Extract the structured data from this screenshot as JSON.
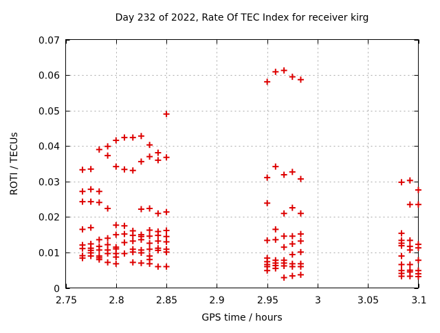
{
  "window": {
    "background": "#ffffff"
  },
  "chart_data": {
    "type": "scatter",
    "title": "Day 232 of 2022, Rate Of TEC Index for receiver kirg",
    "xlabel": "GPS time / hours",
    "ylabel": "ROTI / TECUs",
    "xlim": [
      2.75,
      3.1
    ],
    "ylim": [
      0,
      0.07
    ],
    "xticks": {
      "values": [
        2.75,
        2.8,
        2.85,
        2.9,
        2.95,
        3.0,
        3.05,
        3.1
      ],
      "labels": [
        "2.75",
        "2.8",
        "2.85",
        "2.9",
        "2.95",
        "3",
        "3.05",
        "3.1"
      ]
    },
    "yticks": {
      "values": [
        0,
        0.01,
        0.02,
        0.03,
        0.04,
        0.05,
        0.06,
        0.07
      ],
      "labels": [
        "0",
        "0.01",
        "0.02",
        "0.03",
        "0.04",
        "0.05",
        "0.06",
        "0.07"
      ]
    },
    "grid": true,
    "grid_style": "dashed",
    "grid_color": "#a8a8a8",
    "axis_color": "#000000",
    "legend_position": "none",
    "marker": {
      "shape": "plus",
      "color": "#dd0000",
      "size": 9,
      "stroke_width": 2
    },
    "series": [
      {
        "name": "ROTI",
        "points": [
          [
            2.7667,
            0.0333
          ],
          [
            2.7667,
            0.0272
          ],
          [
            2.7667,
            0.0243
          ],
          [
            2.7667,
            0.0165
          ],
          [
            2.7667,
            0.0121
          ],
          [
            2.7667,
            0.0111
          ],
          [
            2.7667,
            0.0091
          ],
          [
            2.7667,
            0.0084
          ],
          [
            2.775,
            0.0335
          ],
          [
            2.775,
            0.0278
          ],
          [
            2.775,
            0.0243
          ],
          [
            2.775,
            0.017
          ],
          [
            2.775,
            0.0124
          ],
          [
            2.775,
            0.0112
          ],
          [
            2.775,
            0.0106
          ],
          [
            2.775,
            0.0099
          ],
          [
            2.775,
            0.009
          ],
          [
            2.7833,
            0.039
          ],
          [
            2.7833,
            0.0272
          ],
          [
            2.7833,
            0.0241
          ],
          [
            2.7833,
            0.0136
          ],
          [
            2.7833,
            0.0117
          ],
          [
            2.7833,
            0.0107
          ],
          [
            2.7833,
            0.009
          ],
          [
            2.7833,
            0.0085
          ],
          [
            2.7833,
            0.008
          ],
          [
            2.7917,
            0.0399
          ],
          [
            2.7917,
            0.0373
          ],
          [
            2.7917,
            0.0224
          ],
          [
            2.7917,
            0.014
          ],
          [
            2.7917,
            0.0122
          ],
          [
            2.7917,
            0.0107
          ],
          [
            2.7917,
            0.0097
          ],
          [
            2.7917,
            0.0072
          ],
          [
            2.8,
            0.0416
          ],
          [
            2.8,
            0.0342
          ],
          [
            2.8,
            0.0177
          ],
          [
            2.8,
            0.015
          ],
          [
            2.8,
            0.0115
          ],
          [
            2.8,
            0.011
          ],
          [
            2.8,
            0.0097
          ],
          [
            2.8,
            0.0087
          ],
          [
            2.8,
            0.0068
          ],
          [
            2.8083,
            0.0424
          ],
          [
            2.8083,
            0.0334
          ],
          [
            2.8083,
            0.0175
          ],
          [
            2.8083,
            0.0152
          ],
          [
            2.8083,
            0.0128
          ],
          [
            2.8083,
            0.0097
          ],
          [
            2.8167,
            0.0424
          ],
          [
            2.8167,
            0.0331
          ],
          [
            2.8167,
            0.0161
          ],
          [
            2.8167,
            0.0148
          ],
          [
            2.8167,
            0.0132
          ],
          [
            2.8167,
            0.0109
          ],
          [
            2.8167,
            0.0101
          ],
          [
            2.8167,
            0.0072
          ],
          [
            2.825,
            0.0428
          ],
          [
            2.825,
            0.0356
          ],
          [
            2.825,
            0.0222
          ],
          [
            2.825,
            0.015
          ],
          [
            2.825,
            0.0145
          ],
          [
            2.825,
            0.0136
          ],
          [
            2.825,
            0.0107
          ],
          [
            2.825,
            0.0099
          ],
          [
            2.825,
            0.007
          ],
          [
            2.8333,
            0.0403
          ],
          [
            2.8333,
            0.037
          ],
          [
            2.8333,
            0.0224
          ],
          [
            2.8333,
            0.0163
          ],
          [
            2.8333,
            0.0146
          ],
          [
            2.8333,
            0.0126
          ],
          [
            2.8333,
            0.0109
          ],
          [
            2.8333,
            0.009
          ],
          [
            2.8333,
            0.008
          ],
          [
            2.8333,
            0.0068
          ],
          [
            2.8417,
            0.0381
          ],
          [
            2.8417,
            0.036
          ],
          [
            2.8417,
            0.021
          ],
          [
            2.8417,
            0.0159
          ],
          [
            2.8417,
            0.0148
          ],
          [
            2.8417,
            0.0132
          ],
          [
            2.8417,
            0.0112
          ],
          [
            2.8417,
            0.0106
          ],
          [
            2.8417,
            0.006
          ],
          [
            2.85,
            0.049
          ],
          [
            2.85,
            0.0368
          ],
          [
            2.85,
            0.0214
          ],
          [
            2.85,
            0.0162
          ],
          [
            2.85,
            0.0145
          ],
          [
            2.85,
            0.013
          ],
          [
            2.85,
            0.0109
          ],
          [
            2.85,
            0.0101
          ],
          [
            2.85,
            0.006
          ],
          [
            2.95,
            0.0581
          ],
          [
            2.95,
            0.0311
          ],
          [
            2.95,
            0.0239
          ],
          [
            2.95,
            0.0134
          ],
          [
            2.95,
            0.0084
          ],
          [
            2.95,
            0.0074
          ],
          [
            2.95,
            0.0066
          ],
          [
            2.95,
            0.006
          ],
          [
            2.95,
            0.0049
          ],
          [
            2.9583,
            0.0609
          ],
          [
            2.9583,
            0.0342
          ],
          [
            2.9583,
            0.0165
          ],
          [
            2.9583,
            0.0136
          ],
          [
            2.9583,
            0.0078
          ],
          [
            2.9583,
            0.007
          ],
          [
            2.9583,
            0.0063
          ],
          [
            2.9583,
            0.0055
          ],
          [
            2.9667,
            0.0613
          ],
          [
            2.9667,
            0.0319
          ],
          [
            2.9667,
            0.021
          ],
          [
            2.9667,
            0.0146
          ],
          [
            2.9667,
            0.0115
          ],
          [
            2.9667,
            0.0078
          ],
          [
            2.9667,
            0.007
          ],
          [
            2.9667,
            0.0062
          ],
          [
            2.9667,
            0.0029
          ],
          [
            2.975,
            0.0595
          ],
          [
            2.975,
            0.0327
          ],
          [
            2.975,
            0.0226
          ],
          [
            2.975,
            0.0146
          ],
          [
            2.975,
            0.0124
          ],
          [
            2.975,
            0.0094
          ],
          [
            2.975,
            0.0068
          ],
          [
            2.975,
            0.006
          ],
          [
            2.975,
            0.0034
          ],
          [
            2.9833,
            0.0587
          ],
          [
            2.9833,
            0.0307
          ],
          [
            2.9833,
            0.021
          ],
          [
            2.9833,
            0.0152
          ],
          [
            2.9833,
            0.0132
          ],
          [
            2.9833,
            0.0101
          ],
          [
            2.9833,
            0.0068
          ],
          [
            2.9833,
            0.006
          ],
          [
            2.9833,
            0.0037
          ],
          [
            3.0833,
            0.0298
          ],
          [
            3.0833,
            0.0154
          ],
          [
            3.0833,
            0.0134
          ],
          [
            3.0833,
            0.0126
          ],
          [
            3.0833,
            0.0119
          ],
          [
            3.0833,
            0.009
          ],
          [
            3.0833,
            0.0066
          ],
          [
            3.0833,
            0.0049
          ],
          [
            3.0833,
            0.0041
          ],
          [
            3.0833,
            0.0033
          ],
          [
            3.0917,
            0.0303
          ],
          [
            3.0917,
            0.0235
          ],
          [
            3.0917,
            0.0134
          ],
          [
            3.0917,
            0.0117
          ],
          [
            3.0917,
            0.0107
          ],
          [
            3.0917,
            0.0066
          ],
          [
            3.0917,
            0.005
          ],
          [
            3.0917,
            0.0045
          ],
          [
            3.0917,
            0.0033
          ],
          [
            3.1,
            0.0276
          ],
          [
            3.1,
            0.0235
          ],
          [
            3.1,
            0.0123
          ],
          [
            3.1,
            0.0113
          ],
          [
            3.1,
            0.0078
          ],
          [
            3.1,
            0.0049
          ],
          [
            3.1,
            0.004
          ],
          [
            3.1,
            0.0032
          ]
        ]
      }
    ]
  }
}
